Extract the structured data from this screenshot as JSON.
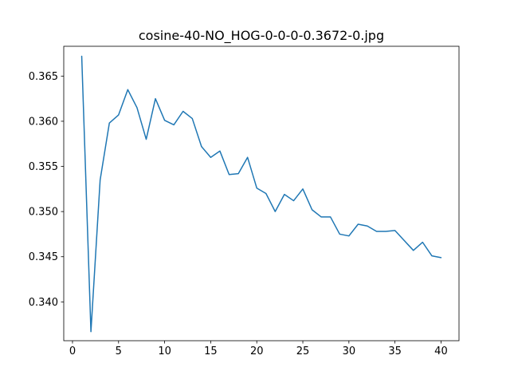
{
  "chart_data": {
    "type": "line",
    "title": "cosine-40-NO_HOG-0-0-0-0.3672-0.jpg",
    "xlabel": "",
    "ylabel": "",
    "xlim": [
      -0.95,
      41.95
    ],
    "ylim": [
      0.3357,
      0.3683
    ],
    "x_ticks": [
      0,
      5,
      10,
      15,
      20,
      25,
      30,
      35,
      40
    ],
    "x_tick_labels": [
      "0",
      "5",
      "10",
      "15",
      "20",
      "25",
      "30",
      "35",
      "40"
    ],
    "y_ticks": [
      0.34,
      0.345,
      0.35,
      0.355,
      0.36,
      0.365
    ],
    "y_tick_labels": [
      "0.340",
      "0.345",
      "0.350",
      "0.355",
      "0.360",
      "0.365"
    ],
    "grid": false,
    "legend": "none",
    "line_color": "#1f77b4",
    "series": [
      {
        "x": [
          1,
          2,
          3,
          4,
          5,
          6,
          7,
          8,
          9,
          10,
          11,
          12,
          13,
          14,
          15,
          16,
          17,
          18,
          19,
          20,
          21,
          22,
          23,
          24,
          25,
          26,
          27,
          28,
          29,
          30,
          31,
          32,
          33,
          34,
          35,
          36,
          37,
          38,
          39,
          40
        ],
        "values": [
          0.3672,
          0.3367,
          0.3535,
          0.3598,
          0.3607,
          0.3635,
          0.3615,
          0.358,
          0.3625,
          0.3601,
          0.3596,
          0.3611,
          0.3603,
          0.3572,
          0.356,
          0.3567,
          0.3541,
          0.3542,
          0.356,
          0.3526,
          0.352,
          0.35,
          0.3519,
          0.3512,
          0.3525,
          0.3502,
          0.3494,
          0.3494,
          0.3475,
          0.3473,
          0.3486,
          0.3484,
          0.3478,
          0.3478,
          0.3479,
          0.3468,
          0.3457,
          0.3466,
          0.3451,
          0.3449
        ]
      }
    ]
  }
}
